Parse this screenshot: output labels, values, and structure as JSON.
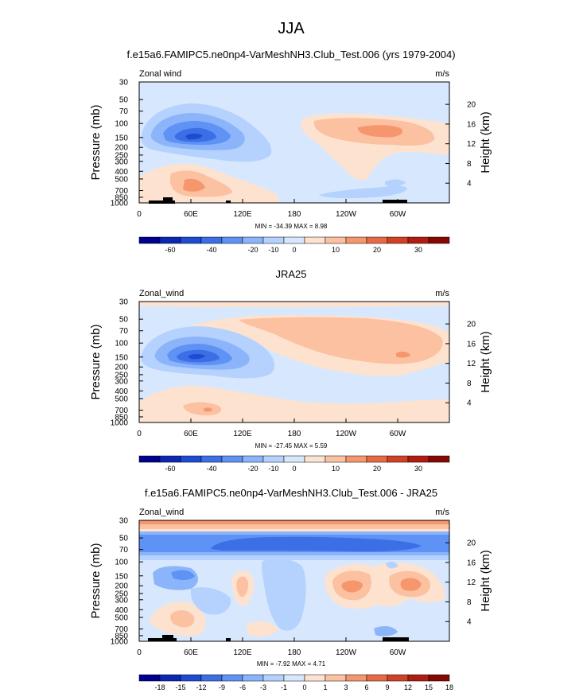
{
  "figure": {
    "title": "JJA"
  },
  "colors": {
    "levels_panels_1_2": [
      "#00008e",
      "#0a28b4",
      "#1e4bd2",
      "#3c6ee6",
      "#5f92f5",
      "#8cb4fa",
      "#b4d2fd",
      "#d7e8fe",
      "#fde2cf",
      "#fbc1a1",
      "#f5966d",
      "#e86a45",
      "#d04225",
      "#b01d10",
      "#860803"
    ],
    "levels_panel_3": [
      "#00008e",
      "#0a28b4",
      "#1e4bd2",
      "#3c6ee6",
      "#5f92f5",
      "#8cb4fa",
      "#b4d2fd",
      "#d7e8fe",
      "#fde2cf",
      "#fbc1a1",
      "#f5966d",
      "#e86a45",
      "#d04225",
      "#b01d10",
      "#860803"
    ],
    "topography": "#000000"
  },
  "labels": {
    "pressure_axis": "Pressure (mb)",
    "height_axis": "Height (km)",
    "pressure_ticks": [
      "30",
      "50",
      "70",
      "100",
      "150",
      "200",
      "250",
      "300",
      "400",
      "500",
      "700",
      "850",
      "1000"
    ],
    "height_ticks": [
      "20",
      "16",
      "12",
      "8",
      "4"
    ],
    "lon_ticks": [
      "0",
      "60E",
      "120E",
      "180",
      "120W",
      "60W"
    ]
  },
  "chart_data": [
    {
      "type": "heatmap",
      "title": "f.e15a6.FAMIPC5.ne0np4-VarMeshNH3.Club_Test.006 (yrs 1979-2004)",
      "variable": "Zonal wind",
      "units": "m/s",
      "xlabel": "",
      "ylabel": "Pressure (mb)",
      "ylabel_right": "Height (km)",
      "stats": "MIN = -34.39  MAX =  8.98",
      "min": -34.39,
      "max": 8.98,
      "colorbar_labels": [
        "-60",
        "-40",
        "-20",
        "-10",
        "0",
        "10",
        "20",
        "30"
      ],
      "features": [
        {
          "kind": "jet",
          "sign": "easterly",
          "lon_center": 75,
          "pressure_center": 150,
          "peak": -34.39
        },
        {
          "kind": "jet",
          "sign": "westerly",
          "lon_center": 250,
          "pressure_center": 150,
          "peak": 8.98
        },
        {
          "kind": "lower-westerly",
          "lon_center": 75,
          "pressure_center": 700,
          "peak": 6
        }
      ]
    },
    {
      "type": "heatmap",
      "title": "JRA25",
      "variable": "Zonal_wind",
      "units": "m/s",
      "xlabel": "",
      "ylabel": "Pressure (mb)",
      "ylabel_right": "Height (km)",
      "stats": "MIN = -27.45  MAX =  5.59",
      "min": -27.45,
      "max": 5.59,
      "colorbar_labels": [
        "-60",
        "-40",
        "-20",
        "-10",
        "0",
        "10",
        "20",
        "30"
      ],
      "features": [
        {
          "kind": "jet",
          "sign": "easterly",
          "lon_center": 75,
          "pressure_center": 150,
          "peak": -27.45
        },
        {
          "kind": "jet",
          "sign": "westerly",
          "lon_center": 240,
          "pressure_center": 100,
          "peak": 5.59
        }
      ]
    },
    {
      "type": "heatmap",
      "title": "f.e15a6.FAMIPC5.ne0np4-VarMeshNH3.Club_Test.006 - JRA25",
      "variable": "Zonal_wind",
      "units": "m/s",
      "xlabel": "",
      "ylabel": "Pressure (mb)",
      "ylabel_right": "Height (km)",
      "stats": "MIN = -7.92  MAX =  4.71",
      "min": -7.92,
      "max": 4.71,
      "colorbar_labels": [
        "-18",
        "-15",
        "-12",
        "-9",
        "-6",
        "-3",
        "-1",
        "0",
        "1",
        "3",
        "6",
        "9",
        "12",
        "15",
        "18"
      ],
      "features": [
        {
          "kind": "band",
          "sign": "negative",
          "pressure_center": 60,
          "peak": -7.92
        },
        {
          "kind": "band",
          "sign": "positive",
          "pressure_center": 30,
          "peak": 4.71
        }
      ]
    }
  ]
}
